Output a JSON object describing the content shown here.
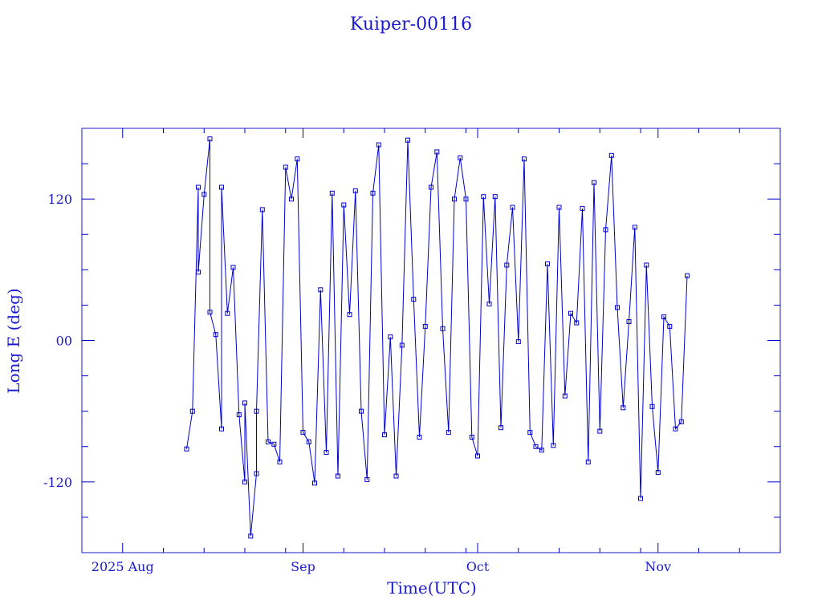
{
  "chart_data": {
    "type": "line",
    "title": "Kuiper-00116",
    "xlabel": "Time(UTC)",
    "ylabel": "Long E (deg)",
    "color": "#0000cc",
    "x_range": [
      "2025-07-25",
      "2025-11-22"
    ],
    "ylim": [
      -180,
      180
    ],
    "grid": false,
    "legend": "none",
    "x_ticks": [
      {
        "label": "2025 Aug",
        "date": "2025-08-01"
      },
      {
        "label": "Sep",
        "date": "2025-09-01"
      },
      {
        "label": "Oct",
        "date": "2025-10-01"
      },
      {
        "label": "Nov",
        "date": "2025-11-01"
      }
    ],
    "x_minor_ticks": [
      "2025-08-08",
      "2025-08-15",
      "2025-08-22",
      "2025-08-29",
      "2025-09-08",
      "2025-09-15",
      "2025-09-22",
      "2025-09-29",
      "2025-10-08",
      "2025-10-15",
      "2025-10-22",
      "2025-10-29",
      "2025-11-08",
      "2025-11-15",
      "2025-11-22"
    ],
    "y_ticks": [
      {
        "label": "-120",
        "value": -120
      },
      {
        "label": "00",
        "value": 0
      },
      {
        "label": "120",
        "value": 120
      }
    ],
    "y_minor_ticks": [
      -150,
      -90,
      -60,
      -30,
      30,
      60,
      90,
      150
    ],
    "series": [
      {
        "x": [
          "2025-08-12",
          "2025-08-13",
          "2025-08-14",
          "2025-08-14",
          "2025-08-15",
          "2025-08-16",
          "2025-08-16",
          "2025-08-17",
          "2025-08-18",
          "2025-08-18",
          "2025-08-19",
          "2025-08-20",
          "2025-08-21",
          "2025-08-22",
          "2025-08-22",
          "2025-08-23",
          "2025-08-24",
          "2025-08-24",
          "2025-08-25",
          "2025-08-26",
          "2025-08-27",
          "2025-08-28",
          "2025-08-29",
          "2025-08-30",
          "2025-08-31",
          "2025-09-01",
          "2025-09-02",
          "2025-09-03",
          "2025-09-04",
          "2025-09-05",
          "2025-09-06",
          "2025-09-07",
          "2025-09-08",
          "2025-09-09",
          "2025-09-10",
          "2025-09-11",
          "2025-09-12",
          "2025-09-13",
          "2025-09-14",
          "2025-09-15",
          "2025-09-16",
          "2025-09-17",
          "2025-09-18",
          "2025-09-19",
          "2025-09-20",
          "2025-09-21",
          "2025-09-22",
          "2025-09-23",
          "2025-09-24",
          "2025-09-25",
          "2025-09-26",
          "2025-09-27",
          "2025-09-28",
          "2025-09-29",
          "2025-09-30",
          "2025-10-01",
          "2025-10-02",
          "2025-10-03",
          "2025-10-04",
          "2025-10-05",
          "2025-10-06",
          "2025-10-07",
          "2025-10-08",
          "2025-10-09",
          "2025-10-10",
          "2025-10-11",
          "2025-10-12",
          "2025-10-13",
          "2025-10-14",
          "2025-10-15",
          "2025-10-16",
          "2025-10-17",
          "2025-10-18",
          "2025-10-19",
          "2025-10-20",
          "2025-10-21",
          "2025-10-22",
          "2025-10-23",
          "2025-10-24",
          "2025-10-25",
          "2025-10-26",
          "2025-10-27",
          "2025-10-28",
          "2025-10-29",
          "2025-10-30",
          "2025-10-31",
          "2025-11-01",
          "2025-11-02",
          "2025-11-03",
          "2025-11-04",
          "2025-11-05",
          "2025-11-06"
        ],
        "y": [
          -92,
          -60,
          130,
          58,
          124,
          171,
          24,
          5,
          -75,
          130,
          23,
          62,
          -63,
          -120,
          -53,
          -166,
          -113,
          -60,
          111,
          -86,
          -88,
          -103,
          147,
          120,
          154,
          -78,
          -86,
          -121,
          43,
          -95,
          125,
          -115,
          115,
          22,
          127,
          -60,
          -118,
          125,
          166,
          -80,
          3,
          -115,
          -4,
          170,
          35,
          -82,
          12,
          130,
          160,
          10,
          -78,
          120,
          155,
          120,
          -82,
          -98,
          122,
          31,
          122,
          -74,
          64,
          113,
          -1,
          154,
          -78,
          -90,
          -93,
          65,
          -89,
          113,
          -47,
          23,
          15,
          112,
          -103,
          134,
          -77,
          94,
          157,
          28,
          -57,
          16,
          96,
          -134,
          64,
          -56,
          -112,
          20,
          12,
          -75,
          -69,
          55
        ]
      }
    ]
  }
}
